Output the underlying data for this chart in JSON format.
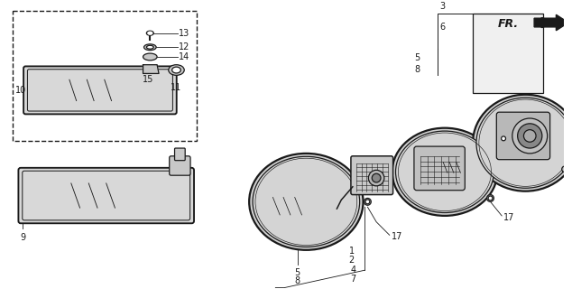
{
  "bg_color": "#ffffff",
  "line_color": "#1a1a1a",
  "fig_width": 6.34,
  "fig_height": 3.2,
  "dpi": 100,
  "gray_light": "#e8e8e8",
  "gray_mid": "#c8c8c8",
  "gray_dark": "#a0a0a0"
}
